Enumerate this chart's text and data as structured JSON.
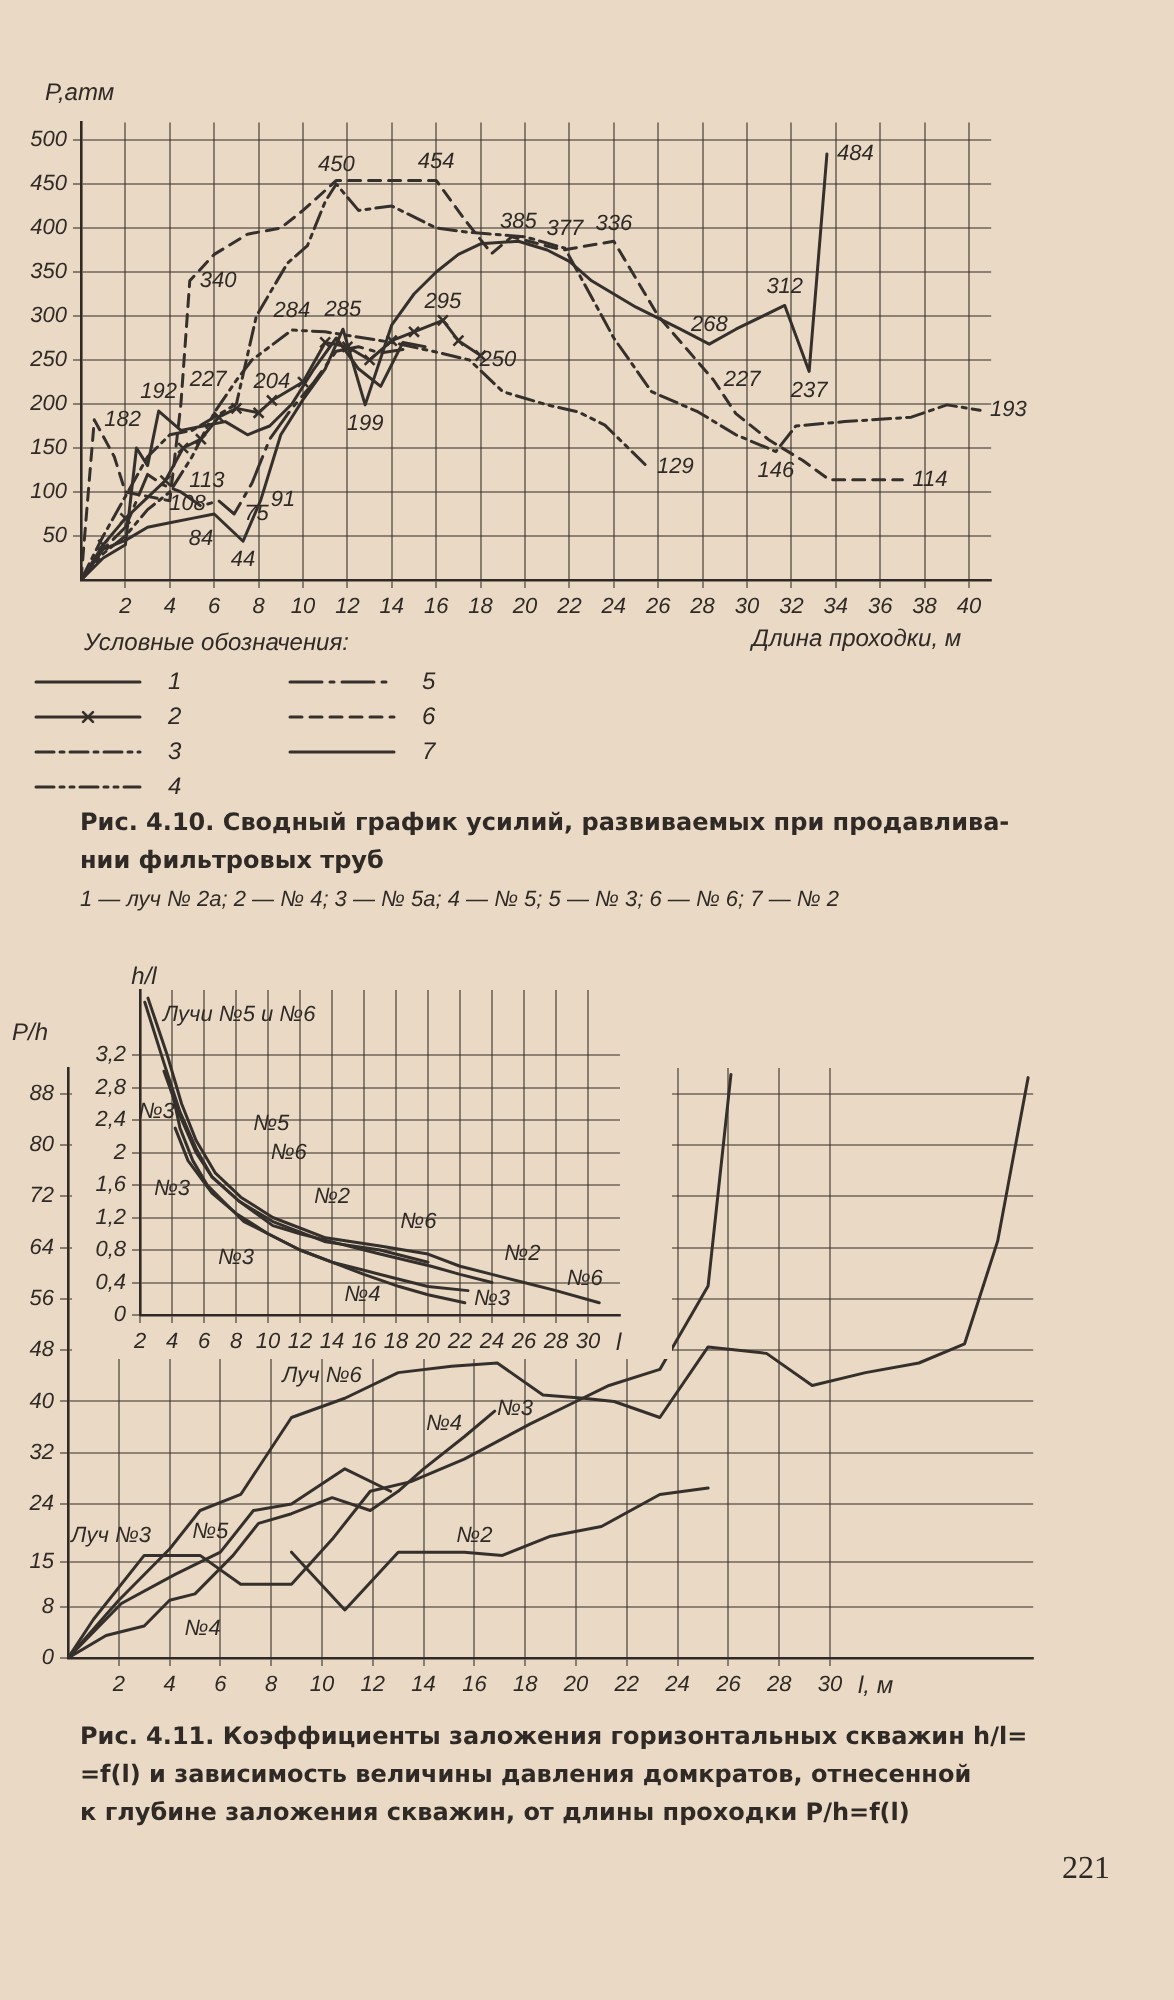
{
  "chart_data": [
    {
      "type": "line",
      "ylabel": "P,атм",
      "xlabel": "Длина проходки, м",
      "legend_title": "Условные обозначения:",
      "legend": "bottom left",
      "grid": true,
      "xlim": [
        0,
        41
      ],
      "ylim": [
        0,
        520
      ],
      "xticks": [
        2,
        4,
        6,
        8,
        10,
        12,
        14,
        16,
        18,
        20,
        22,
        24,
        26,
        28,
        30,
        32,
        34,
        36,
        38,
        40
      ],
      "yticks": [
        50,
        100,
        150,
        200,
        250,
        300,
        350,
        400,
        450,
        500
      ],
      "series": [
        {
          "name": "1",
          "color": "#35302b",
          "line_style": "solid",
          "x": [
            0,
            1,
            2,
            3,
            4,
            5,
            6,
            7.3,
            8.1,
            9,
            10,
            11,
            11.8,
            12.8,
            14,
            15,
            16,
            17,
            18,
            19.7,
            21,
            22,
            23,
            25,
            27,
            28.3,
            29.5,
            31.7,
            32.8,
            33.6
          ],
          "values": [
            0,
            35,
            45,
            60,
            65,
            70,
            75,
            44,
            91,
            165,
            205,
            240,
            285,
            199,
            290,
            325,
            350,
            370,
            382,
            385,
            375,
            362,
            340,
            310,
            285,
            268,
            285,
            312,
            237,
            484
          ],
          "value_labels": [
            null,
            null,
            null,
            null,
            null,
            null,
            null,
            "44",
            "91",
            null,
            null,
            null,
            "285",
            "199",
            null,
            null,
            null,
            null,
            null,
            "385",
            null,
            null,
            null,
            null,
            null,
            "268",
            null,
            "312",
            "237",
            "484"
          ]
        },
        {
          "name": "2",
          "color": "#35302b",
          "line_style": "solid",
          "marker": "cross",
          "x": [
            0,
            1,
            2,
            3.8,
            4.6,
            5.4,
            6.2,
            7,
            8,
            8.6,
            10,
            11,
            12,
            13,
            14,
            15,
            16.3,
            17,
            18
          ],
          "values": [
            0,
            40,
            70,
            113,
            150,
            160,
            185,
            195,
            190,
            204,
            225,
            270,
            265,
            250,
            272,
            282,
            295,
            272,
            255
          ],
          "value_labels": [
            null,
            null,
            null,
            "113",
            null,
            null,
            null,
            null,
            null,
            "204",
            null,
            null,
            null,
            null,
            null,
            null,
            "295",
            null,
            null
          ]
        },
        {
          "name": "3",
          "color": "#35302b",
          "line_style": "dashdot",
          "x": [
            0,
            1,
            2,
            3,
            4,
            5,
            6,
            7,
            7.9,
            9.3,
            10.2,
            11,
            11.5,
            12.5,
            14,
            16,
            17.5,
            20,
            21.8,
            24,
            25.7,
            27.8,
            29.5,
            31.3,
            32.2,
            34.4,
            37.4,
            39,
            40.5
          ],
          "values": [
            0,
            50,
            95,
            140,
            165,
            170,
            185,
            200,
            300,
            360,
            380,
            430,
            450,
            420,
            425,
            400,
            395,
            390,
            377,
            275,
            214,
            191,
            165,
            146,
            175,
            180,
            185,
            199,
            193
          ],
          "value_labels": [
            null,
            null,
            null,
            null,
            null,
            null,
            null,
            null,
            null,
            null,
            null,
            null,
            "450",
            null,
            null,
            null,
            null,
            null,
            "377",
            null,
            null,
            null,
            null,
            "146",
            null,
            null,
            null,
            null,
            "193"
          ]
        },
        {
          "name": "4",
          "color": "#35302b",
          "line_style": "dashdotdot",
          "x": [
            0,
            1,
            2,
            3,
            4,
            5,
            6,
            7,
            7.7,
            9.5,
            11,
            12,
            14,
            16,
            17.5,
            19,
            21,
            22.4,
            23.6,
            25.5
          ],
          "values": [
            0,
            30,
            50,
            80,
            100,
            140,
            190,
            227,
            250,
            284,
            282,
            278,
            270,
            259,
            250,
            214,
            199,
            191,
            176,
            129
          ],
          "value_labels": [
            null,
            null,
            null,
            null,
            null,
            null,
            null,
            "227",
            null,
            "284",
            null,
            null,
            null,
            null,
            "250",
            null,
            null,
            null,
            null,
            "129"
          ]
        },
        {
          "name": "5",
          "color": "#35302b",
          "line_style": "longdashdot",
          "x": [
            0,
            1,
            2,
            3,
            3.7,
            4.5,
            5.4,
            6.2,
            6.9,
            7.7,
            8.5,
            9.5,
            10.5,
            11.5,
            12.5,
            13.5,
            14.5
          ],
          "values": [
            0,
            35,
            60,
            120,
            108,
            100,
            84,
            90,
            75,
            110,
            160,
            195,
            225,
            260,
            265,
            258,
            262
          ],
          "value_labels": [
            null,
            null,
            null,
            null,
            "108",
            null,
            "84",
            null,
            "75",
            null,
            null,
            null,
            null,
            null,
            null,
            null,
            null
          ]
        },
        {
          "name": "6",
          "color": "#35302b",
          "line_style": "dashed",
          "x": [
            0,
            0.6,
            1.5,
            2,
            3,
            4,
            4.5,
            4.9,
            6,
            7.5,
            9,
            10,
            11.5,
            16,
            17.3,
            18.5,
            19.4,
            21.7,
            24,
            26,
            28.5,
            29.5,
            31,
            32.5,
            33.7,
            37
          ],
          "values": [
            0,
            182,
            140,
            100,
            95,
            90,
            200,
            340,
            370,
            393,
            400,
            420,
            454,
            454,
            409,
            371,
            390,
            375,
            385,
            300,
            227,
            189,
            159,
            136,
            114,
            114
          ],
          "value_labels": [
            null,
            "182",
            null,
            null,
            null,
            null,
            null,
            "340",
            null,
            null,
            null,
            null,
            null,
            "454",
            null,
            null,
            null,
            null,
            null,
            null,
            "227",
            null,
            null,
            null,
            null,
            "114"
          ]
        },
        {
          "name": "7",
          "color": "#35302b",
          "line_style": "solid",
          "x": [
            0,
            1,
            2,
            2.5,
            3,
            3.5,
            4.5,
            5.5,
            6.5,
            7.5,
            8.5,
            9.5,
            10.5,
            11.5,
            12.5,
            13.5,
            14.5,
            15.5
          ],
          "values": [
            0,
            25,
            40,
            150,
            130,
            192,
            170,
            175,
            180,
            165,
            175,
            200,
            240,
            275,
            240,
            220,
            270,
            265
          ],
          "value_labels": [
            null,
            null,
            null,
            null,
            null,
            "192",
            null,
            null,
            null,
            null,
            null,
            null,
            null,
            null,
            null,
            null,
            null,
            null
          ]
        }
      ],
      "annotations": [
        "Рис. 4.10. Сводный график усилий, развиваемых при продавлива-\nнии фильтровых труб",
        "1 — луч № 2а; 2 — № 4; 3 — № 5а; 4 — № 5; 5 — № 3; 6 — № 6; 7 — № 2",
        "336"
      ]
    },
    {
      "type": "line",
      "xlabel": "l",
      "ylabel": "h/l",
      "grid": true,
      "line_style": "solid",
      "xlim": [
        2,
        32
      ],
      "ylim": [
        0,
        4
      ],
      "xticks": [
        2,
        4,
        6,
        8,
        10,
        12,
        14,
        16,
        18,
        20,
        22,
        24,
        26,
        28,
        30
      ],
      "yticks": [
        0,
        {
          "value": 0.4,
          "label": "0,4"
        },
        {
          "value": 0.8,
          "label": "0,8"
        },
        {
          "value": 1.2,
          "label": "1,2"
        },
        {
          "value": 1.6,
          "label": "1,6"
        },
        2,
        {
          "value": 2.4,
          "label": "2,4"
        },
        {
          "value": 2.8,
          "label": "2,8"
        },
        {
          "value": 3.2,
          "label": "3,2"
        }
      ],
      "series": [
        {
          "color": "#35302b",
          "x": [
            2.3,
            3.5,
            4.5,
            5.5,
            6.5,
            8.2,
            10.3,
            13.6,
            17,
            20
          ],
          "values": [
            3.85,
            3.1,
            2.5,
            2.05,
            1.7,
            1.4,
            1.15,
            0.9,
            0.8,
            0.65
          ]
        },
        {
          "color": "#35302b",
          "x": [
            2.5,
            3.7,
            4.6,
            5.5,
            6.7,
            8.3,
            10.3,
            13.6,
            17,
            20,
            22,
            24,
            26,
            28,
            30.7
          ],
          "values": [
            3.9,
            3.2,
            2.6,
            2.15,
            1.75,
            1.45,
            1.2,
            0.95,
            0.85,
            0.75,
            0.6,
            0.5,
            0.4,
            0.3,
            0.15
          ]
        },
        {
          "color": "#35302b",
          "x": [
            3.5,
            4.5,
            5.5,
            6.5,
            8.2,
            10.3,
            12,
            14,
            17,
            20.2,
            22,
            24
          ],
          "values": [
            3.0,
            2.45,
            2.0,
            1.7,
            1.4,
            1.1,
            1.0,
            0.9,
            0.75,
            0.6,
            0.5,
            0.4
          ]
        },
        {
          "color": "#35302b",
          "x": [
            3.9,
            4.5,
            5.3,
            6.2,
            7.2,
            8.5,
            10,
            12,
            14,
            16,
            18,
            20,
            22.5
          ],
          "values": [
            2.85,
            2.3,
            1.9,
            1.6,
            1.4,
            1.15,
            1.0,
            0.8,
            0.65,
            0.55,
            0.45,
            0.35,
            0.3
          ]
        },
        {
          "color": "#35302b",
          "x": [
            4.2,
            5,
            6.5,
            8,
            10,
            12,
            14,
            16,
            18.2,
            20,
            22.3
          ],
          "values": [
            2.3,
            1.9,
            1.5,
            1.25,
            1.0,
            0.8,
            0.65,
            0.5,
            0.35,
            0.25,
            0.15
          ]
        }
      ],
      "annotations": [
        "Лучи №5 и №6",
        "№3",
        "№5",
        "№6",
        "№3",
        "№2",
        "№6",
        "№3",
        "№2",
        "№6",
        "№4",
        "№3"
      ]
    },
    {
      "type": "line",
      "xlabel": "l, м",
      "ylabel": "P/h",
      "grid": true,
      "line_style": "solid",
      "xlim": [
        0,
        38
      ],
      "ylim": [
        0,
        92
      ],
      "xticks": [
        2,
        4,
        6,
        8,
        10,
        12,
        14,
        16,
        18,
        20,
        22,
        24,
        26,
        28,
        30
      ],
      "yticks": [
        0,
        8,
        15,
        24,
        32,
        40,
        48,
        56,
        64,
        72,
        80,
        88
      ],
      "series": [
        {
          "color": "#35302b",
          "x": [
            0,
            1,
            3,
            5.2,
            6.8,
            8.8,
            10.4,
            11.9,
            13.5,
            15.6,
            18.2,
            20,
            21.3,
            23.3,
            25.2,
            26.1
          ],
          "values": [
            0,
            6,
            16,
            16,
            11.5,
            11.5,
            18.5,
            26,
            27.5,
            31,
            36.5,
            40,
            42.5,
            45,
            58,
            91
          ]
        },
        {
          "color": "#35302b",
          "x": [
            0,
            2.1,
            4.2,
            6,
            7.3,
            8.8,
            10.9,
            12.7
          ],
          "values": [
            0,
            8.5,
            13,
            16.5,
            23,
            24,
            29.5,
            26
          ]
        },
        {
          "color": "#35302b",
          "x": [
            0,
            1.5,
            3,
            4,
            5,
            6.5,
            7.5,
            8.8,
            10.4,
            11.9,
            13,
            14,
            15.6,
            16.8
          ],
          "values": [
            0,
            3.5,
            5,
            9,
            10,
            16,
            21,
            22.5,
            25,
            23,
            26,
            29.5,
            34.5,
            38.5
          ]
        },
        {
          "color": "#35302b",
          "x": [
            0,
            2,
            4,
            5.2,
            6.8,
            8.8,
            10.9,
            13,
            15.1,
            16.9,
            18.7,
            20.3,
            21.5,
            23.3,
            25.2,
            27.5,
            29.3,
            31.4,
            33.5,
            35.3,
            36.6,
            37.8
          ],
          "values": [
            0,
            9,
            17,
            23,
            25.5,
            37.5,
            40.5,
            44.5,
            45.5,
            46,
            41,
            40.5,
            40,
            37.5,
            48.5,
            47.5,
            42.5,
            44.5,
            46,
            49,
            65,
            90.5
          ]
        },
        {
          "color": "#35302b",
          "x": [
            8.8,
            10.9,
            13,
            15.6,
            17.1,
            19,
            21,
            23.3,
            25.2
          ],
          "values": [
            16.5,
            7.5,
            16.5,
            16.5,
            16,
            19,
            20.5,
            25.5,
            26.5
          ]
        }
      ],
      "annotations": [
        "Луч №3",
        "№5",
        "№4",
        "Луч №6",
        "№4",
        "№3",
        "№2",
        "Рис. 4.11. Коэффициенты заложения горизонтальных скважин h/l=\n=f(l) и зависимость величины давления домкратов, отнесенной\nк глубине заложения скважин, от длины проходки P/h=f(l)",
        "221"
      ]
    }
  ]
}
